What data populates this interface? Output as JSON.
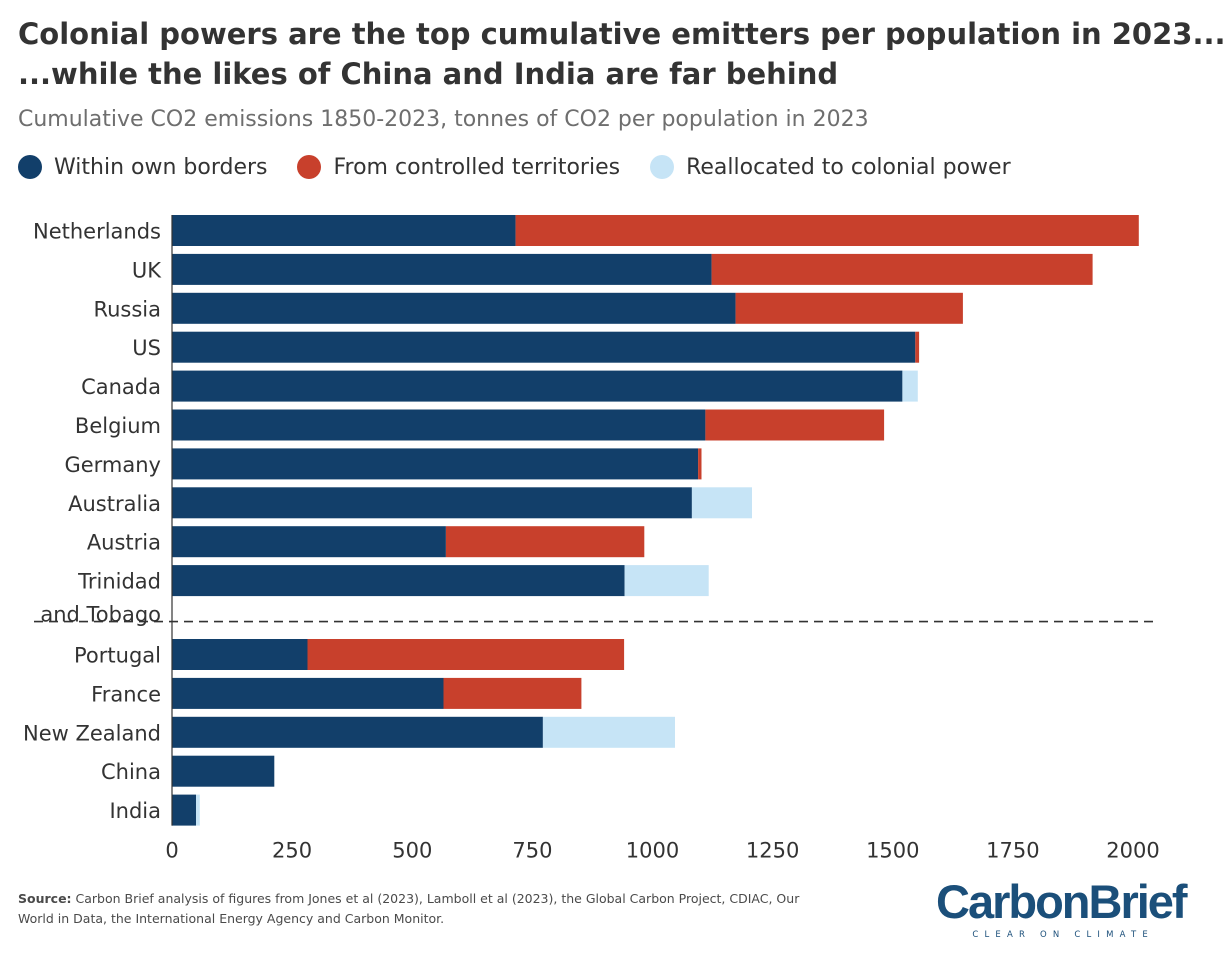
{
  "header": {
    "title_line1": "Colonial powers are the top cumulative emitters per population in 2023...",
    "title_line2": "...while the likes of China and India are far behind",
    "subtitle": "Cumulative CO2 emissions 1850-2023, tonnes of CO2 per population in 2023"
  },
  "legend": [
    {
      "label": "Within own borders",
      "color": "#123f6a"
    },
    {
      "label": "From controlled territories",
      "color": "#c8402c"
    },
    {
      "label": "Reallocated to colonial power",
      "color": "#c6e4f6"
    }
  ],
  "footer": {
    "source_label": "Source:",
    "source_text": "Carbon Brief analysis of figures from Jones et al (2023), Lamboll et al (2023), the Global Carbon Project, CDIAC, Our World in Data, the International Energy Agency and Carbon Monitor.",
    "logo_word": "CarbonBrief",
    "logo_tagline": "CLEAR ON CLIMATE"
  },
  "chart_data": {
    "type": "bar",
    "orientation": "horizontal",
    "stacked": true,
    "categories": [
      "Netherlands",
      "UK",
      "Russia",
      "US",
      "Canada",
      "Belgium",
      "Germany",
      "Australia",
      "Austria",
      "Trinidad and Tobago",
      "Portugal",
      "France",
      "New Zealand",
      "China",
      "India"
    ],
    "category_label_lines": [
      [
        "Netherlands"
      ],
      [
        "UK"
      ],
      [
        "Russia"
      ],
      [
        "US"
      ],
      [
        "Canada"
      ],
      [
        "Belgium"
      ],
      [
        "Germany"
      ],
      [
        "Australia"
      ],
      [
        "Austria"
      ],
      [
        "Trinidad",
        "and Tobago"
      ],
      [
        "Portugal"
      ],
      [
        "France"
      ],
      [
        "New Zealand"
      ],
      [
        "China"
      ],
      [
        "India"
      ]
    ],
    "series": [
      {
        "name": "Within own borders",
        "color": "#123f6a",
        "values": [
          715,
          1123,
          1173,
          1547,
          1520,
          1110,
          1095,
          1082,
          570,
          942,
          282,
          565,
          772,
          213,
          50
        ]
      },
      {
        "name": "From controlled territories",
        "color": "#c8402c",
        "values": [
          1297,
          793,
          473,
          8,
          0,
          372,
          7,
          0,
          413,
          0,
          659,
          287,
          0,
          0,
          0
        ]
      },
      {
        "name": "Reallocated to colonial power",
        "color": "#c6e4f6",
        "values": [
          0,
          0,
          0,
          0,
          32,
          0,
          0,
          125,
          0,
          175,
          0,
          0,
          275,
          0,
          8
        ]
      }
    ],
    "separator_after_index": 9,
    "x_ticks": [
      "0",
      "250",
      "500",
      "750",
      "1000",
      "1250",
      "1500",
      "1750",
      "2000"
    ],
    "xlim": [
      0,
      2050
    ],
    "title": "Colonial powers are the top cumulative emitters per population in 2023...",
    "xlabel": "",
    "ylabel": ""
  }
}
